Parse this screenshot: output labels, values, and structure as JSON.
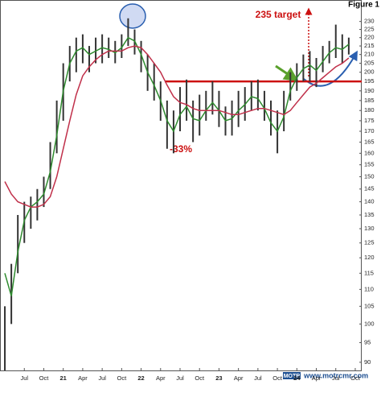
{
  "chart_data": {
    "type": "ohlc",
    "figure_label": "Figure 1",
    "categories": [
      null,
      null,
      null,
      "Jul",
      null,
      null,
      "Oct",
      null,
      null,
      "21",
      null,
      null,
      "Apr",
      null,
      null,
      "Jul",
      null,
      null,
      "Oct",
      null,
      null,
      "22",
      null,
      null,
      "Apr",
      null,
      null,
      "Jul",
      null,
      null,
      "Oct",
      null,
      null,
      "23",
      null,
      null,
      "Apr",
      null,
      null,
      "Jul",
      null,
      null,
      "Oct",
      null,
      null,
      "24",
      null,
      null,
      "Apr",
      null,
      null,
      "Jul",
      null,
      null,
      "Oct"
    ],
    "high": [
      105,
      118,
      135,
      140,
      142,
      145,
      150,
      165,
      185,
      205,
      215,
      220,
      222,
      215,
      220,
      222,
      220,
      218,
      222,
      232,
      225,
      218,
      210,
      205,
      195,
      185,
      180,
      192,
      196,
      185,
      188,
      190,
      195,
      190,
      182,
      185,
      190,
      192,
      195,
      196,
      190,
      185,
      180,
      190,
      200,
      205,
      210,
      212,
      208,
      215,
      218,
      228,
      222,
      220,
      null
    ],
    "low": [
      88,
      100,
      115,
      125,
      130,
      133,
      138,
      145,
      160,
      175,
      195,
      200,
      205,
      200,
      205,
      205,
      208,
      205,
      208,
      215,
      210,
      200,
      190,
      185,
      175,
      162,
      160,
      170,
      175,
      165,
      168,
      175,
      178,
      172,
      168,
      168,
      172,
      175,
      180,
      180,
      175,
      168,
      160,
      170,
      185,
      190,
      195,
      195,
      192,
      200,
      205,
      208,
      205,
      210,
      null
    ],
    "bar_color": "#333333",
    "moving_averages": [
      {
        "color": "#2e8b2e",
        "values": [
          115,
          108,
          122,
          133,
          138,
          140,
          143,
          152,
          168,
          190,
          205,
          212,
          214,
          210,
          212,
          214,
          213,
          211,
          214,
          220,
          218,
          210,
          200,
          193,
          185,
          175,
          170,
          178,
          182,
          176,
          175,
          180,
          184,
          180,
          175,
          176,
          180,
          183,
          187,
          186,
          181,
          174,
          170,
          177,
          190,
          197,
          202,
          204,
          201,
          206,
          211,
          214,
          213,
          216,
          null
        ]
      },
      {
        "color": "#c0304a",
        "values": [
          148,
          143,
          140,
          139,
          138,
          138,
          139,
          142,
          150,
          162,
          175,
          188,
          198,
          203,
          207,
          210,
          212,
          212,
          212,
          214,
          215,
          214,
          210,
          205,
          200,
          193,
          187,
          184,
          183,
          181,
          180,
          180,
          180,
          180,
          179,
          178,
          178,
          179,
          180,
          181,
          181,
          180,
          179,
          178,
          180,
          184,
          188,
          192,
          194,
          197,
          200,
          203,
          205,
          208,
          null
        ]
      }
    ],
    "ylim": [
      88,
      244
    ],
    "log_y": true,
    "yticks": [
      90,
      95,
      100,
      105,
      110,
      115,
      120,
      125,
      130,
      135,
      140,
      145,
      150,
      155,
      160,
      165,
      170,
      175,
      180,
      185,
      190,
      195,
      200,
      205,
      210,
      215,
      220,
      225,
      230
    ],
    "support_level": 195,
    "support_color": "#cc1111",
    "annotations": [
      "235 target",
      "-33%"
    ],
    "logo": "MOTR",
    "source": "www.motrcmr.com"
  }
}
